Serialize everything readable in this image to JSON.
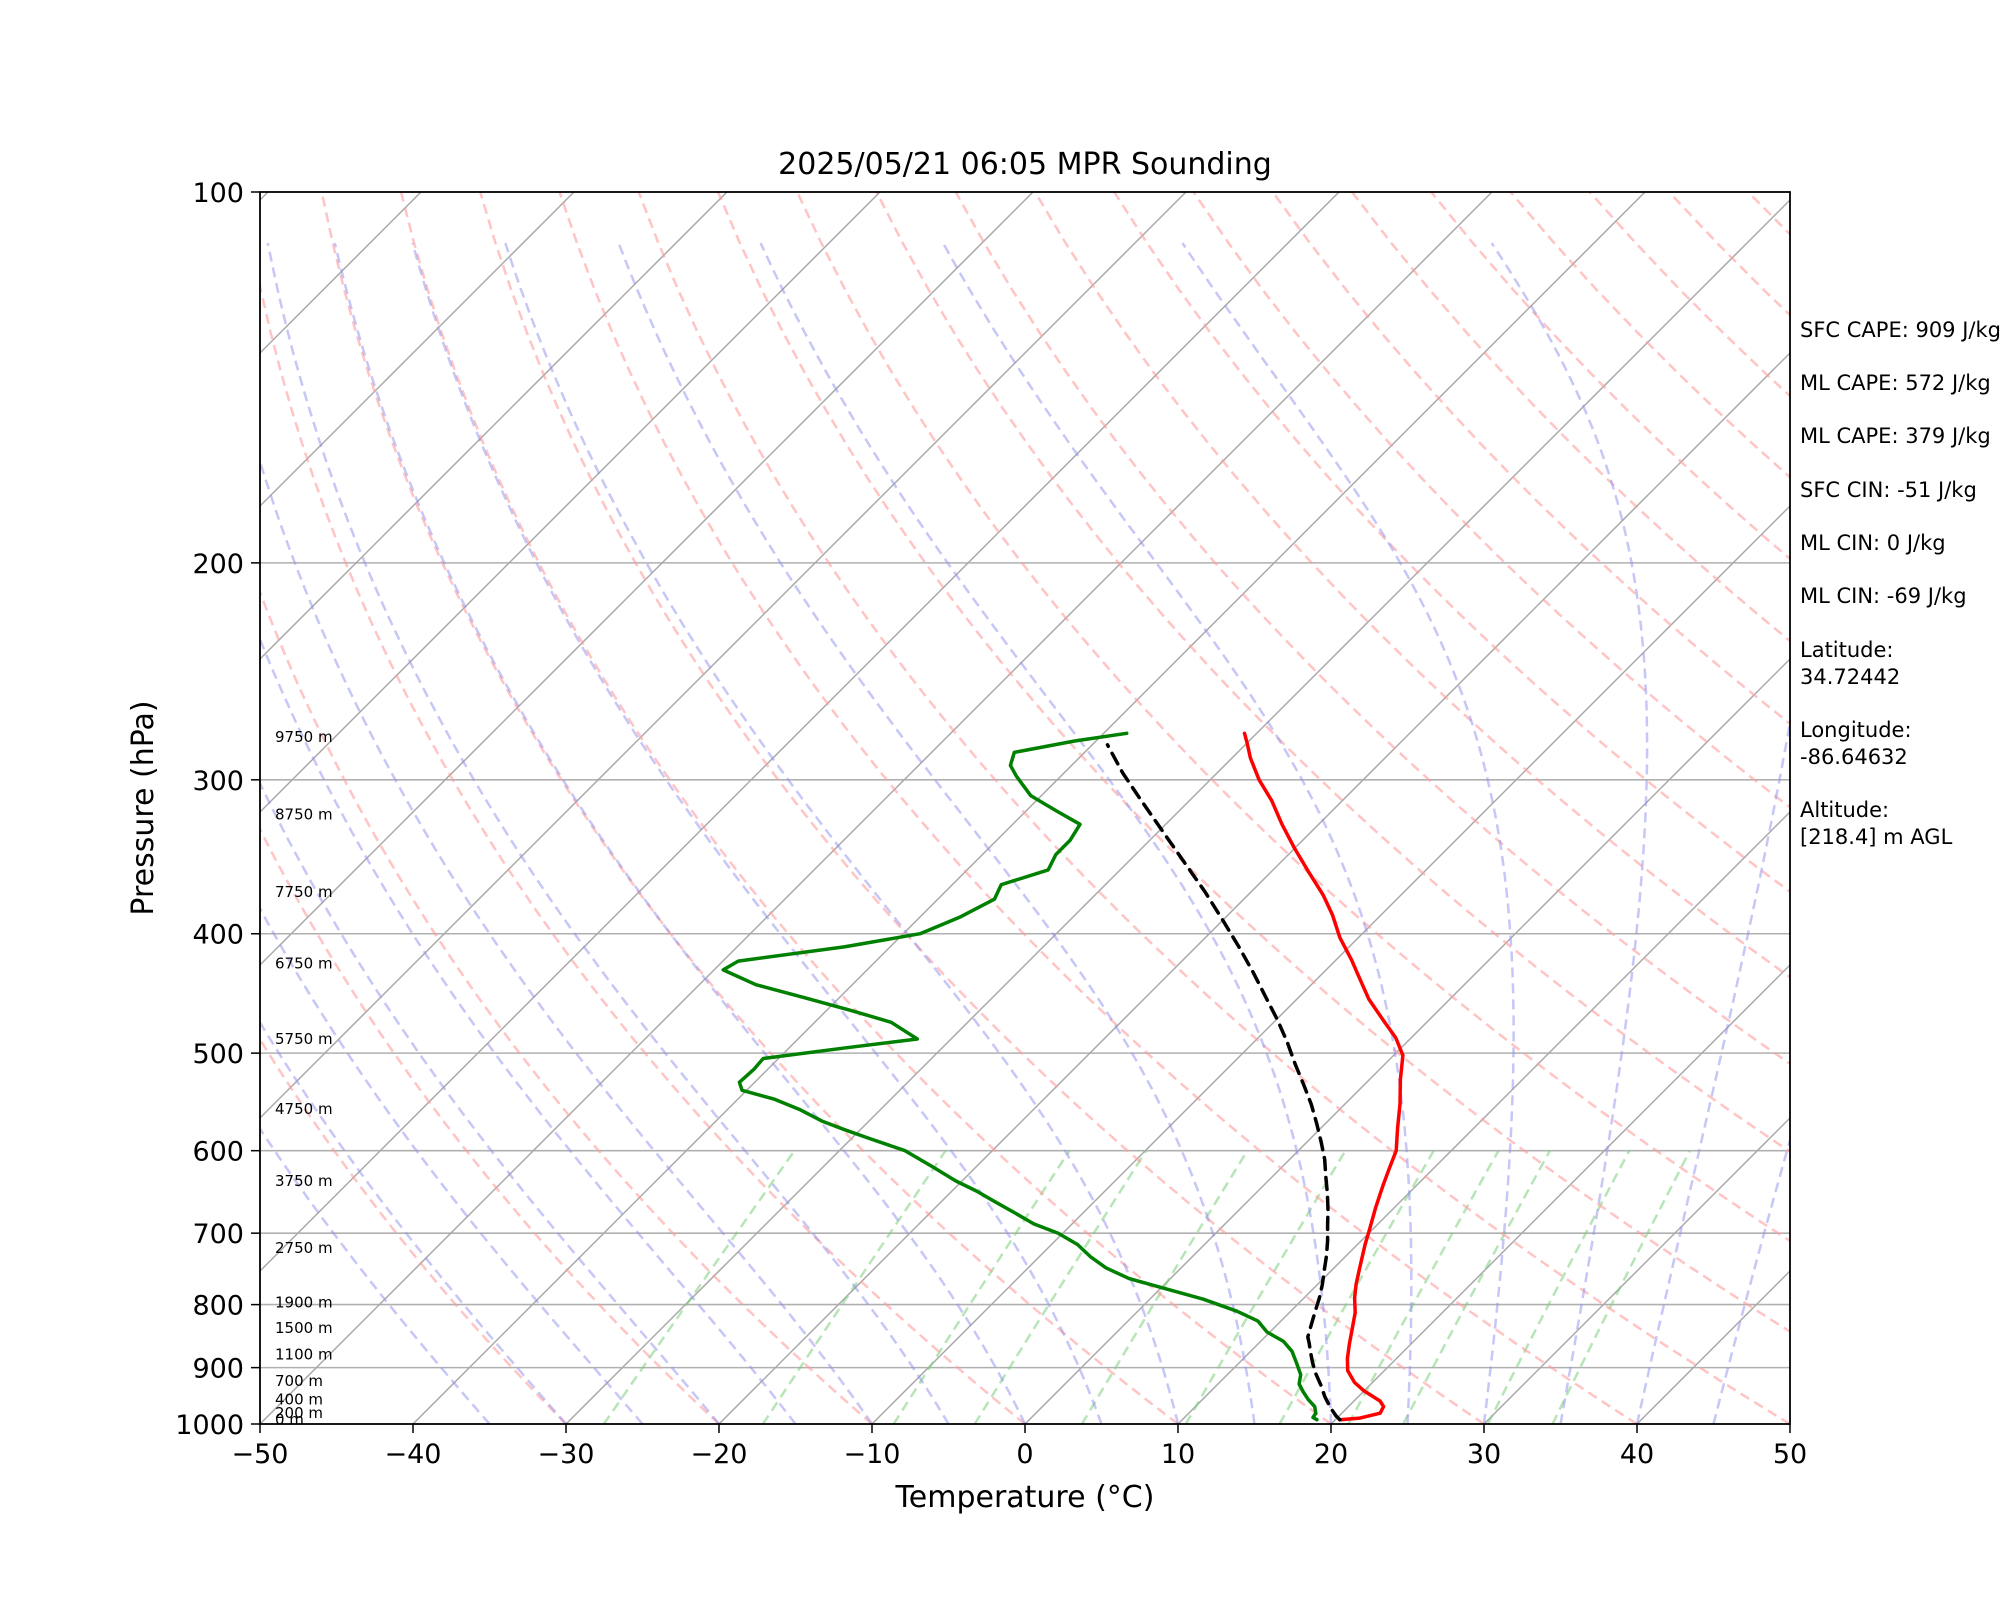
{
  "chart_data": {
    "type": "line",
    "title": "2025/05/21 06:05 MPR Sounding",
    "xlabel": "Temperature (°C)",
    "ylabel": "Pressure (hPa)",
    "xlim": [
      -50,
      50
    ],
    "ylim": [
      1000,
      100
    ],
    "y_scale": "log",
    "grid": true,
    "x_ticks": [
      "−50",
      "−40",
      "−30",
      "−20",
      "−10",
      "0",
      "10",
      "20",
      "30",
      "40",
      "50"
    ],
    "y_ticks": [
      "100",
      "200",
      "300",
      "400",
      "500",
      "600",
      "700",
      "800",
      "900",
      "1000"
    ],
    "height_labels": [
      {
        "p": 992,
        "text": "0 m"
      },
      {
        "p": 980,
        "text": "200 m"
      },
      {
        "p": 955,
        "text": "400 m"
      },
      {
        "p": 923,
        "text": "700 m"
      },
      {
        "p": 878,
        "text": "1100 m"
      },
      {
        "p": 836,
        "text": "1500 m"
      },
      {
        "p": 797,
        "text": "1900 m"
      },
      {
        "p": 720,
        "text": "2750 m"
      },
      {
        "p": 635,
        "text": "3750 m"
      },
      {
        "p": 555,
        "text": "4750 m"
      },
      {
        "p": 487,
        "text": "5750 m"
      },
      {
        "p": 423,
        "text": "6750 m"
      },
      {
        "p": 370,
        "text": "7750 m"
      },
      {
        "p": 320,
        "text": "8750 m"
      },
      {
        "p": 277,
        "text": "9750 m"
      }
    ],
    "series": [
      {
        "color": "#ff0000",
        "style": "solid",
        "points": [
          [
            20.3,
            992
          ],
          [
            21.5,
            989
          ],
          [
            22.5,
            980
          ],
          [
            22.3,
            968
          ],
          [
            21.7,
            958
          ],
          [
            20.0,
            940
          ],
          [
            18.8,
            925
          ],
          [
            17.6,
            905
          ],
          [
            16.8,
            885
          ],
          [
            16.0,
            862
          ],
          [
            15.2,
            838
          ],
          [
            14.3,
            812
          ],
          [
            13.3,
            790
          ],
          [
            12.5,
            770
          ],
          [
            11.6,
            745
          ],
          [
            10.5,
            715
          ],
          [
            9.8,
            695
          ],
          [
            8.8,
            668
          ],
          [
            7.8,
            640
          ],
          [
            7.1,
            620
          ],
          [
            6.4,
            600
          ],
          [
            5.0,
            575
          ],
          [
            3.6,
            550
          ],
          [
            2.0,
            525
          ],
          [
            0.6,
            502
          ],
          [
            -1.0,
            486
          ],
          [
            -3.0,
            470
          ],
          [
            -5.3,
            452
          ],
          [
            -7.0,
            437
          ],
          [
            -9.0,
            420
          ],
          [
            -11.2,
            403
          ],
          [
            -13.2,
            386
          ],
          [
            -15.1,
            372
          ],
          [
            -17.6,
            356
          ],
          [
            -20.0,
            341
          ],
          [
            -22.4,
            326
          ],
          [
            -24.6,
            312
          ],
          [
            -26.8,
            300
          ],
          [
            -28.8,
            288
          ],
          [
            -30.0,
            280
          ],
          [
            -30.8,
            275
          ]
        ]
      },
      {
        "color": "#008000",
        "style": "solid",
        "points": [
          [
            18.8,
            992
          ],
          [
            18.4,
            988
          ],
          [
            18.3,
            980
          ],
          [
            17.8,
            968
          ],
          [
            16.9,
            955
          ],
          [
            16.1,
            942
          ],
          [
            15.3,
            928
          ],
          [
            14.8,
            912
          ],
          [
            13.8,
            893
          ],
          [
            12.7,
            873
          ],
          [
            11.5,
            857
          ],
          [
            9.8,
            842
          ],
          [
            8.5,
            825
          ],
          [
            6.5,
            810
          ],
          [
            3.5,
            792
          ],
          [
            0.0,
            775
          ],
          [
            -2.7,
            762
          ],
          [
            -4.9,
            747
          ],
          [
            -6.6,
            732
          ],
          [
            -8.3,
            715
          ],
          [
            -10.3,
            700
          ],
          [
            -12.5,
            688
          ],
          [
            -14.6,
            673
          ],
          [
            -16.5,
            660
          ],
          [
            -18.4,
            647
          ],
          [
            -20.4,
            635
          ],
          [
            -22.9,
            618
          ],
          [
            -25.7,
            600
          ],
          [
            -28.7,
            587
          ],
          [
            -31.0,
            577
          ],
          [
            -33.0,
            568
          ],
          [
            -35.2,
            556
          ],
          [
            -37.6,
            545
          ],
          [
            -40.3,
            536
          ],
          [
            -41.0,
            528
          ],
          [
            -40.9,
            515
          ],
          [
            -41.0,
            505
          ],
          [
            -36.3,
            495
          ],
          [
            -32.2,
            487
          ],
          [
            -35.0,
            472
          ],
          [
            -38.3,
            462
          ],
          [
            -42.2,
            451
          ],
          [
            -46.3,
            440
          ],
          [
            -49.4,
            428
          ],
          [
            -49.0,
            421
          ],
          [
            -43.0,
            410
          ],
          [
            -38.9,
            400
          ],
          [
            -37.4,
            388
          ],
          [
            -36.3,
            375
          ],
          [
            -36.8,
            365
          ],
          [
            -34.7,
            355
          ],
          [
            -35.2,
            345
          ],
          [
            -35.2,
            336
          ],
          [
            -35.6,
            326
          ],
          [
            -38.0,
            318
          ],
          [
            -40.7,
            309
          ],
          [
            -42.9,
            298
          ],
          [
            -44.0,
            292
          ],
          [
            -44.6,
            285
          ],
          [
            -41.4,
            279
          ],
          [
            -38.5,
            275
          ]
        ]
      },
      {
        "color": "#000000",
        "style": "dashed",
        "points": [
          [
            20.3,
            992
          ],
          [
            19.8,
            985
          ],
          [
            18.9,
            970
          ],
          [
            17.8,
            950
          ],
          [
            16.8,
            930
          ],
          [
            15.7,
            910
          ],
          [
            14.8,
            892
          ],
          [
            14.0,
            875
          ],
          [
            13.3,
            860
          ],
          [
            12.8,
            850
          ],
          [
            12.2,
            830
          ],
          [
            11.6,
            810
          ],
          [
            11.0,
            790
          ],
          [
            10.3,
            770
          ],
          [
            9.5,
            750
          ],
          [
            8.7,
            730
          ],
          [
            7.8,
            710
          ],
          [
            6.8,
            690
          ],
          [
            5.8,
            670
          ],
          [
            4.7,
            650
          ],
          [
            3.5,
            630
          ],
          [
            2.3,
            610
          ],
          [
            0.9,
            590
          ],
          [
            -0.6,
            570
          ],
          [
            -2.2,
            550
          ],
          [
            -4.0,
            530
          ],
          [
            -5.9,
            510
          ],
          [
            -7.8,
            490
          ],
          [
            -9.9,
            470
          ],
          [
            -12.2,
            450
          ],
          [
            -14.6,
            430
          ],
          [
            -17.2,
            410
          ],
          [
            -20.0,
            390
          ],
          [
            -23.0,
            370
          ],
          [
            -26.3,
            350
          ],
          [
            -29.8,
            330
          ],
          [
            -33.5,
            310
          ],
          [
            -36.2,
            296
          ],
          [
            -39.0,
            281
          ]
        ]
      }
    ],
    "annotations": [
      "SFC CAPE: 909 J/kg",
      "ML CAPE: 572 J/kg",
      "ML CAPE: 379 J/kg",
      "SFC CIN: -51 J/kg",
      "ML CIN: 0 J/kg",
      "ML CIN: -69 J/kg",
      "Latitude:",
      "34.72442",
      "Longitude:",
      "-86.64632",
      "Altitude:",
      "[218.4] m AGL"
    ]
  }
}
